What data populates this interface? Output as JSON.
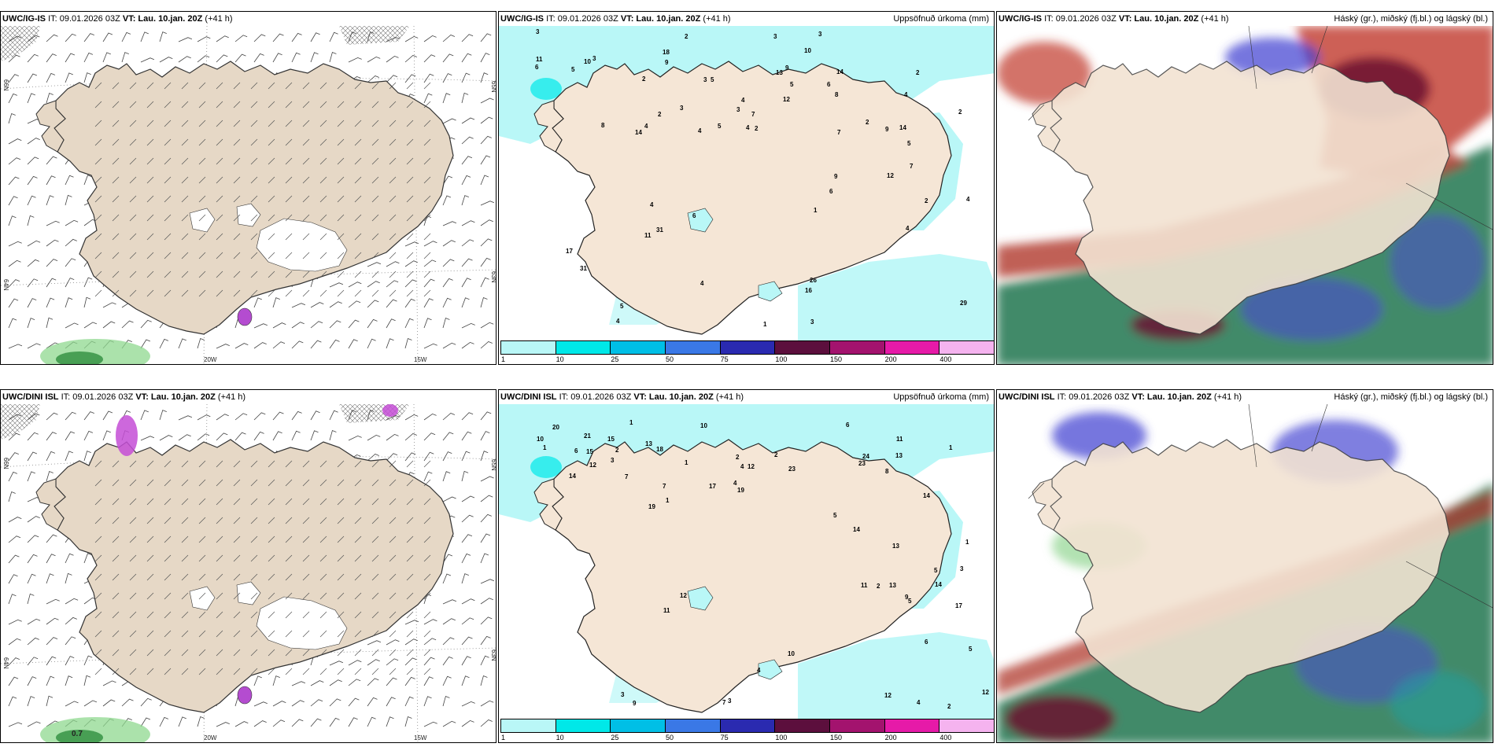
{
  "panels": [
    {
      "model": "UWC/IG-IS",
      "it": "IT: 09.01.2026 03Z",
      "vt_label": "VT:",
      "vt": "Lau. 10.jan. 20Z",
      "lead": "(+41 h)",
      "right_title": "",
      "kind": "wind",
      "lat_labels": [
        "66N",
        "64N",
        "65N",
        "63N"
      ],
      "lon_labels": [
        "20W",
        "15W"
      ],
      "corner_value": "",
      "fill_note": "snow-marker"
    },
    {
      "model": "UWC/IG-IS",
      "it": "IT: 09.01.2026 03Z",
      "vt_label": "VT:",
      "vt": "Lau. 10.jan. 20Z",
      "lead": "(+41 h)",
      "right_title": "Uppsöfnuð úrkoma (mm)",
      "kind": "precip",
      "numbers": [
        "9",
        "7",
        "13",
        "16",
        "9",
        "9",
        "4",
        "26",
        "18",
        "14",
        "8",
        "17",
        "5",
        "12",
        "7",
        "29",
        "10",
        "9",
        "14",
        "11",
        "6",
        "7",
        "2",
        "4",
        "3",
        "2",
        "5",
        "31",
        "10",
        "4",
        "12",
        "4",
        "2",
        "8",
        "3",
        "4",
        "6",
        "6",
        "2",
        "31",
        "3",
        "4",
        "5",
        "6",
        "3",
        "2",
        "4",
        "3",
        "5",
        "2",
        "3",
        "4",
        "11",
        "14",
        "3",
        "1",
        "2",
        "5",
        "4",
        "1",
        "3",
        "2",
        "4",
        "5"
      ]
    },
    {
      "model": "UWC/IG-IS",
      "it": "IT: 09.01.2026 03Z",
      "vt_label": "VT:",
      "vt": "Lau. 10.jan. 20Z",
      "lead": "(+41 h)",
      "right_title": "Háský (gr.), miðský (fj.bl.) og lágský (bl.)",
      "kind": "cloud"
    },
    {
      "model": "UWC/DINI ISL",
      "it": "IT: 09.01.2026 03Z",
      "vt_label": "VT:",
      "vt": "Lau. 10.jan. 20Z",
      "lead": "(+41 h)",
      "right_title": "",
      "kind": "wind",
      "lat_labels": [
        "66N",
        "64N",
        "65N",
        "63N"
      ],
      "lon_labels": [
        "20W",
        "15W"
      ],
      "corner_value": "0.7"
    },
    {
      "model": "UWC/DINI ISL",
      "it": "IT: 09.01.2026 03Z",
      "vt_label": "VT:",
      "vt": "Lau. 10.jan. 20Z",
      "lead": "(+41 h)",
      "right_title": "Uppsöfnuð úrkoma (mm)",
      "kind": "precip",
      "numbers": [
        "3",
        "5",
        "7",
        "10",
        "20",
        "11",
        "19",
        "11",
        "13",
        "14",
        "18",
        "13",
        "21",
        "17",
        "14",
        "12",
        "10",
        "8",
        "6",
        "9",
        "15",
        "14",
        "17",
        "12",
        "12",
        "5",
        "7",
        "6",
        "13",
        "9",
        "15",
        "12",
        "10",
        "24",
        "19",
        "7",
        "2",
        "13",
        "12",
        "4",
        "11",
        "1",
        "2",
        "2",
        "1",
        "23",
        "23",
        "5",
        "6",
        "2",
        "1",
        "3",
        "1",
        "5",
        "4",
        "3",
        "1",
        "3",
        "2",
        "4",
        "1",
        "14",
        "4"
      ]
    },
    {
      "model": "UWC/DINI ISL",
      "it": "IT: 09.01.2026 03Z",
      "vt_label": "VT:",
      "vt": "Lau. 10.jan. 20Z",
      "lead": "(+41 h)",
      "right_title": "Háský (gr.), miðský (fj.bl.) og lágský (bl.)",
      "kind": "cloud"
    }
  ],
  "colorbar": {
    "labels": [
      "1",
      "10",
      "25",
      "50",
      "75",
      "100",
      "150",
      "200",
      "400"
    ],
    "colors": [
      "#b9f7f7",
      "#00e8e8",
      "#00bfe6",
      "#3a78e6",
      "#2a2ab0",
      "#5c0f3d",
      "#a3136e",
      "#e61aa8",
      "#f5b3ef"
    ]
  }
}
